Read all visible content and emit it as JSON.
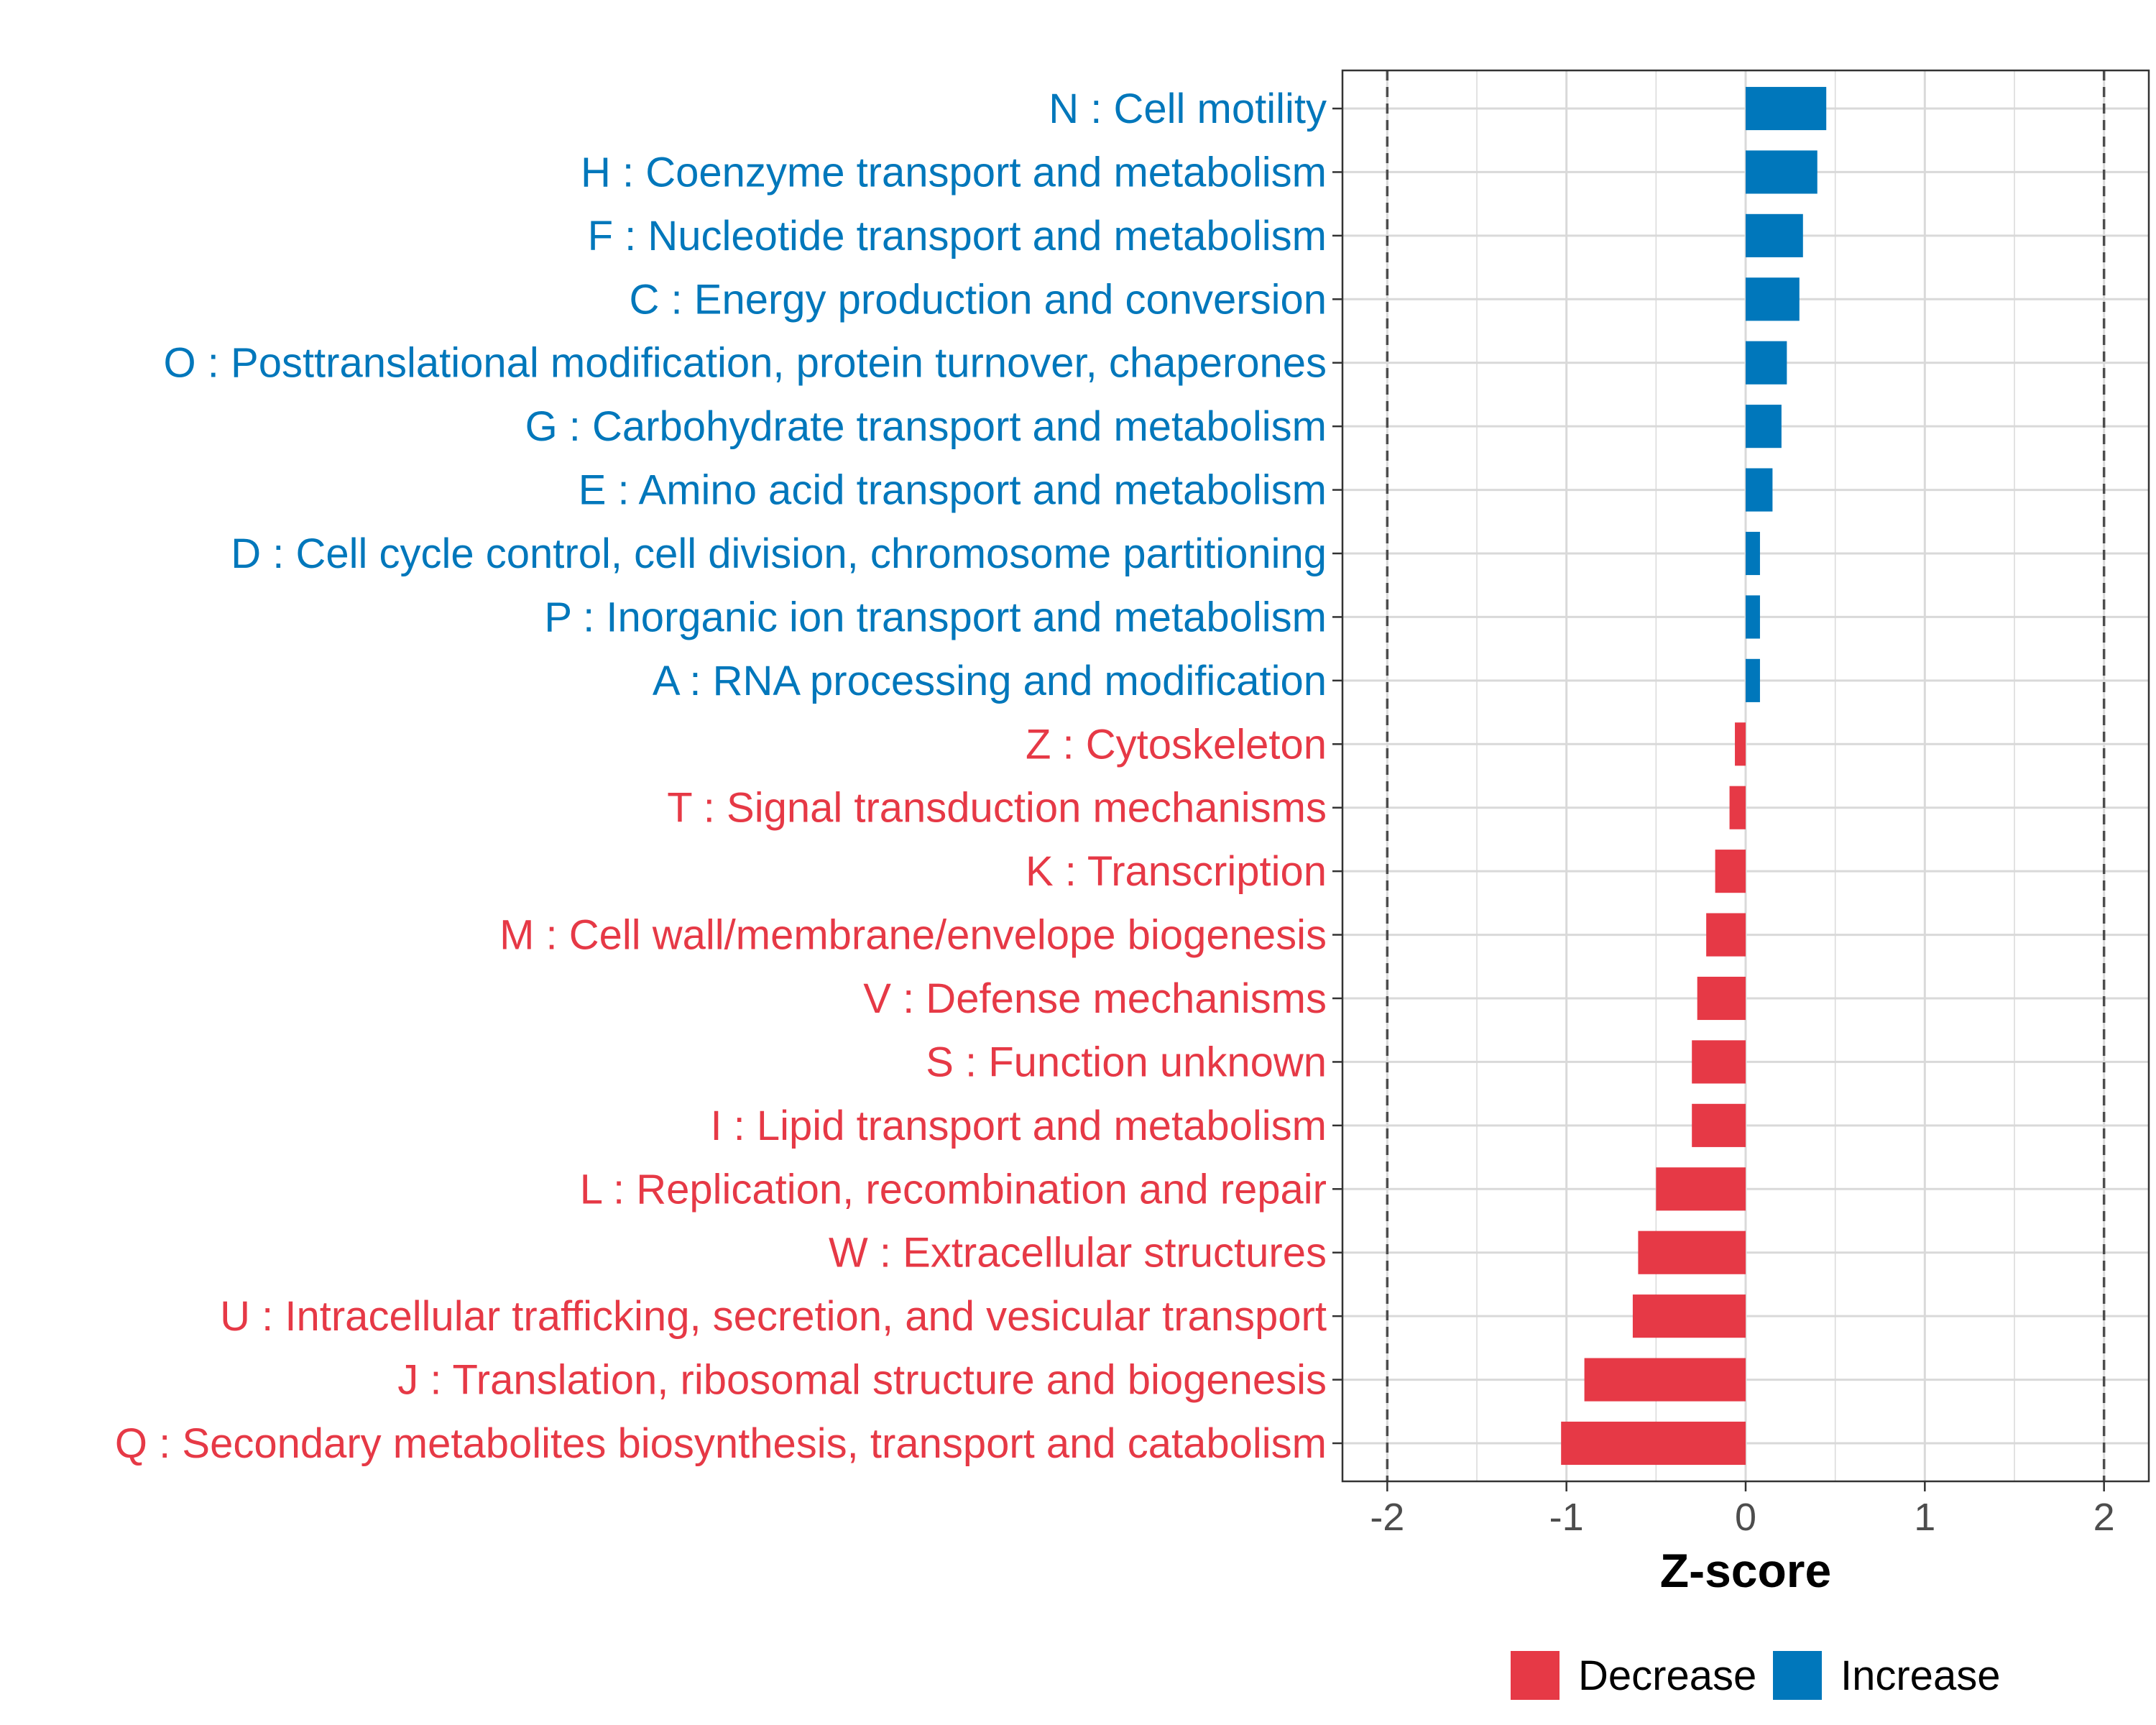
{
  "chart_data": {
    "type": "bar",
    "orientation": "horizontal",
    "xlabel": "Z-score",
    "ylabel": "",
    "xlim": [
      -2.25,
      2.25
    ],
    "x_ticks": [
      -2,
      -1,
      0,
      1,
      2
    ],
    "x_tick_labels": [
      "-2",
      "-1",
      "0",
      "1",
      "2"
    ],
    "reference_lines": [
      -2,
      2
    ],
    "grid": true,
    "colors": {
      "Decrease": "#e63946",
      "Increase": "#0077bb"
    },
    "legend": {
      "position": "bottom",
      "entries": [
        "Decrease",
        "Increase"
      ]
    },
    "categories": [
      "N : Cell motility",
      "H : Coenzyme transport and metabolism",
      "F : Nucleotide transport and metabolism",
      "C : Energy production and conversion",
      "O : Posttranslational modification, protein turnover, chaperones",
      "G : Carbohydrate transport and metabolism",
      "E : Amino acid transport and metabolism",
      "D : Cell cycle control, cell division, chromosome partitioning",
      "P : Inorganic ion transport and metabolism",
      "A : RNA processing and modification",
      "Z : Cytoskeleton",
      "T : Signal transduction mechanisms",
      "K : Transcription",
      "M : Cell wall/membrane/envelope biogenesis",
      "V : Defense mechanisms",
      "S : Function unknown",
      "I : Lipid transport and metabolism",
      "L : Replication, recombination and repair",
      "W : Extracellular structures",
      "U : Intracellular trafficking, secretion, and vesicular transport",
      "J : Translation, ribosomal structure and biogenesis",
      "Q : Secondary metabolites biosynthesis, transport and catabolism"
    ],
    "values": [
      0.45,
      0.4,
      0.32,
      0.3,
      0.23,
      0.2,
      0.15,
      0.08,
      0.08,
      0.08,
      -0.06,
      -0.09,
      -0.17,
      -0.22,
      -0.27,
      -0.3,
      -0.3,
      -0.5,
      -0.6,
      -0.63,
      -0.9,
      -1.03
    ],
    "groups": [
      "Increase",
      "Increase",
      "Increase",
      "Increase",
      "Increase",
      "Increase",
      "Increase",
      "Increase",
      "Increase",
      "Increase",
      "Decrease",
      "Decrease",
      "Decrease",
      "Decrease",
      "Decrease",
      "Decrease",
      "Decrease",
      "Decrease",
      "Decrease",
      "Decrease",
      "Decrease",
      "Decrease"
    ]
  }
}
